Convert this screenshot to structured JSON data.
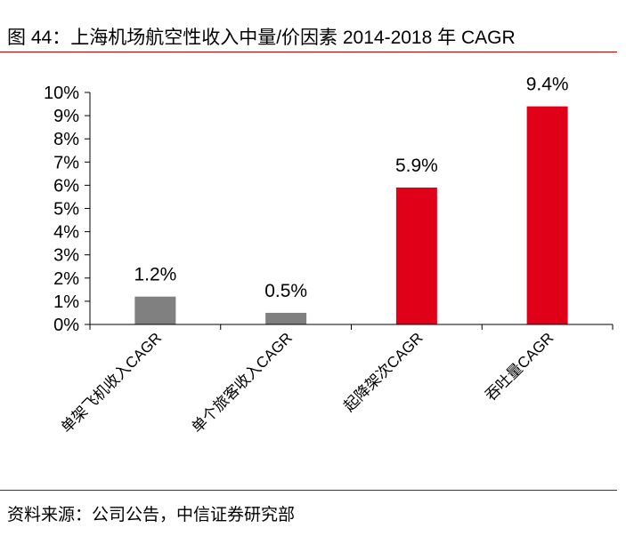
{
  "title": "图 44：上海机场航空性收入中量/价因素 2014-2018 年 CAGR",
  "source": "资料来源：公司公告，中信证券研究部",
  "chart_data": {
    "type": "bar",
    "categories": [
      "单架飞机收入CAGR",
      "单个旅客收入CAGR",
      "起降架次CAGR",
      "吞吐量CAGR"
    ],
    "values": [
      1.2,
      0.5,
      5.9,
      9.4
    ],
    "data_labels": [
      "1.2%",
      "0.5%",
      "5.9%",
      "9.4%"
    ],
    "bar_colors": [
      "#808080",
      "#808080",
      "#e00018",
      "#e00018"
    ],
    "ylim": [
      0,
      10
    ],
    "yticks": [
      0,
      1,
      2,
      3,
      4,
      5,
      6,
      7,
      8,
      9,
      10
    ],
    "ytick_labels": [
      "0%",
      "1%",
      "2%",
      "3%",
      "4%",
      "5%",
      "6%",
      "7%",
      "8%",
      "9%",
      "10%"
    ],
    "grid": false,
    "legend": "none",
    "xlabel": "",
    "ylabel": ""
  }
}
